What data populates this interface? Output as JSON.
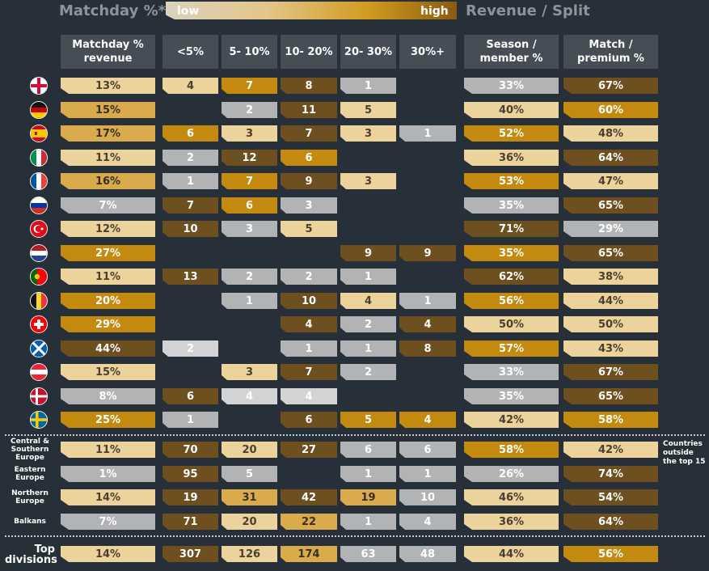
{
  "header": {
    "matchday_title": "Matchday %*",
    "low_label": "low",
    "high_label": "high",
    "revenue_title": "Revenue / Split"
  },
  "columns": {
    "matchday": "Matchday % revenue",
    "b1": "<5%",
    "b2": "5- 10%",
    "b3": "10- 20%",
    "b4": "20- 30%",
    "b5": "30%+",
    "season": "Season / member %",
    "match": "Match / premium %"
  },
  "palette": {
    "pale": "#ecd39c",
    "light": "#d9ab4c",
    "gold": "#c48a10",
    "brown": "#6e4f1f",
    "grey": "#b2b3b5",
    "lgrey": "#d2d3d4"
  },
  "chart_data": {
    "type": "table",
    "countries": [
      {
        "flag": "england-flag-icon",
        "matchday": "13%",
        "mc": "pale",
        "bins": [
          [
            "4",
            "pale"
          ],
          [
            "7",
            "gold"
          ],
          [
            "8",
            "brown"
          ],
          [
            "1",
            "grey"
          ],
          null
        ],
        "season": [
          "33%",
          "grey"
        ],
        "match": [
          "67%",
          "brown"
        ]
      },
      {
        "flag": "germany-flag-icon",
        "matchday": "15%",
        "mc": "light",
        "bins": [
          null,
          [
            "2",
            "grey"
          ],
          [
            "11",
            "brown"
          ],
          [
            "5",
            "pale"
          ],
          null
        ],
        "season": [
          "40%",
          "pale"
        ],
        "match": [
          "60%",
          "gold"
        ]
      },
      {
        "flag": "spain-flag-icon",
        "matchday": "17%",
        "mc": "light",
        "bins": [
          [
            "6",
            "gold"
          ],
          [
            "3",
            "pale"
          ],
          [
            "7",
            "brown"
          ],
          [
            "3",
            "pale"
          ],
          [
            "1",
            "grey"
          ]
        ],
        "season": [
          "52%",
          "gold"
        ],
        "match": [
          "48%",
          "pale"
        ]
      },
      {
        "flag": "italy-flag-icon",
        "matchday": "11%",
        "mc": "pale",
        "bins": [
          [
            "2",
            "grey"
          ],
          [
            "12",
            "brown"
          ],
          [
            "6",
            "gold"
          ],
          null,
          null
        ],
        "season": [
          "36%",
          "pale"
        ],
        "match": [
          "64%",
          "brown"
        ]
      },
      {
        "flag": "france-flag-icon",
        "matchday": "16%",
        "mc": "light",
        "bins": [
          [
            "1",
            "grey"
          ],
          [
            "7",
            "gold"
          ],
          [
            "9",
            "brown"
          ],
          [
            "3",
            "pale"
          ],
          null
        ],
        "season": [
          "53%",
          "gold"
        ],
        "match": [
          "47%",
          "pale"
        ]
      },
      {
        "flag": "russia-flag-icon",
        "matchday": "7%",
        "mc": "grey",
        "bins": [
          [
            "7",
            "brown"
          ],
          [
            "6",
            "gold"
          ],
          [
            "3",
            "grey"
          ],
          null,
          null
        ],
        "season": [
          "35%",
          "grey"
        ],
        "match": [
          "65%",
          "brown"
        ]
      },
      {
        "flag": "turkey-flag-icon",
        "matchday": "12%",
        "mc": "pale",
        "bins": [
          [
            "10",
            "brown"
          ],
          [
            "3",
            "grey"
          ],
          [
            "5",
            "pale"
          ],
          null,
          null
        ],
        "season": [
          "71%",
          "brown"
        ],
        "match": [
          "29%",
          "grey"
        ]
      },
      {
        "flag": "netherlands-flag-icon",
        "matchday": "27%",
        "mc": "gold",
        "bins": [
          null,
          null,
          null,
          [
            "9",
            "brown"
          ],
          [
            "9",
            "brown"
          ]
        ],
        "season": [
          "35%",
          "gold"
        ],
        "match": [
          "65%",
          "brown"
        ]
      },
      {
        "flag": "portugal-flag-icon",
        "matchday": "11%",
        "mc": "pale",
        "bins": [
          [
            "13",
            "brown"
          ],
          [
            "2",
            "grey"
          ],
          [
            "2",
            "grey"
          ],
          [
            "1",
            "grey"
          ],
          null
        ],
        "season": [
          "62%",
          "brown"
        ],
        "match": [
          "38%",
          "pale"
        ]
      },
      {
        "flag": "belgium-flag-icon",
        "matchday": "20%",
        "mc": "gold",
        "bins": [
          null,
          [
            "1",
            "grey"
          ],
          [
            "10",
            "brown"
          ],
          [
            "4",
            "pale"
          ],
          [
            "1",
            "grey"
          ]
        ],
        "season": [
          "56%",
          "gold"
        ],
        "match": [
          "44%",
          "pale"
        ]
      },
      {
        "flag": "switzerland-flag-icon",
        "matchday": "29%",
        "mc": "gold",
        "bins": [
          null,
          null,
          [
            "4",
            "brown"
          ],
          [
            "2",
            "grey"
          ],
          [
            "4",
            "brown"
          ]
        ],
        "season": [
          "50%",
          "pale"
        ],
        "match": [
          "50%",
          "pale"
        ]
      },
      {
        "flag": "scotland-flag-icon",
        "matchday": "44%",
        "mc": "brown",
        "bins": [
          [
            "2",
            "lgrey"
          ],
          null,
          [
            "1",
            "grey"
          ],
          [
            "1",
            "grey"
          ],
          [
            "8",
            "brown"
          ]
        ],
        "season": [
          "57%",
          "gold"
        ],
        "match": [
          "43%",
          "pale"
        ]
      },
      {
        "flag": "austria-flag-icon",
        "matchday": "15%",
        "mc": "pale",
        "bins": [
          null,
          [
            "3",
            "pale"
          ],
          [
            "7",
            "brown"
          ],
          [
            "2",
            "grey"
          ],
          null
        ],
        "season": [
          "33%",
          "grey"
        ],
        "match": [
          "67%",
          "brown"
        ]
      },
      {
        "flag": "denmark-flag-icon",
        "matchday": "8%",
        "mc": "grey",
        "bins": [
          [
            "6",
            "brown"
          ],
          [
            "4",
            "lgrey"
          ],
          [
            "4",
            "lgrey"
          ],
          null,
          null
        ],
        "season": [
          "35%",
          "grey"
        ],
        "match": [
          "65%",
          "brown"
        ]
      },
      {
        "flag": "sweden-flag-icon",
        "matchday": "25%",
        "mc": "gold",
        "bins": [
          [
            "1",
            "grey"
          ],
          null,
          [
            "6",
            "brown"
          ],
          [
            "5",
            "gold"
          ],
          [
            "4",
            "gold"
          ]
        ],
        "season": [
          "42%",
          "pale"
        ],
        "match": [
          "58%",
          "gold"
        ]
      }
    ],
    "regions": [
      {
        "label": "Central & Southern Europe",
        "matchday": "11%",
        "mc": "pale",
        "bins": [
          [
            "70",
            "brown"
          ],
          [
            "20",
            "pale"
          ],
          [
            "27",
            "brown"
          ],
          [
            "6",
            "grey"
          ],
          [
            "6",
            "grey"
          ]
        ],
        "season": [
          "58%",
          "gold"
        ],
        "match": [
          "42%",
          "pale"
        ]
      },
      {
        "label": "Eastern Europe",
        "matchday": "1%",
        "mc": "grey",
        "bins": [
          [
            "95",
            "brown"
          ],
          [
            "5",
            "grey"
          ],
          null,
          [
            "1",
            "grey"
          ],
          [
            "1",
            "grey"
          ]
        ],
        "season": [
          "26%",
          "grey"
        ],
        "match": [
          "74%",
          "brown"
        ]
      },
      {
        "label": "Northern Europe",
        "matchday": "14%",
        "mc": "pale",
        "bins": [
          [
            "19",
            "brown"
          ],
          [
            "31",
            "light"
          ],
          [
            "42",
            "brown"
          ],
          [
            "19",
            "light"
          ],
          [
            "10",
            "grey"
          ]
        ],
        "season": [
          "46%",
          "pale"
        ],
        "match": [
          "54%",
          "brown"
        ]
      },
      {
        "label": "Balkans",
        "matchday": "7%",
        "mc": "grey",
        "bins": [
          [
            "71",
            "brown"
          ],
          [
            "20",
            "pale"
          ],
          [
            "22",
            "light"
          ],
          [
            "1",
            "grey"
          ],
          [
            "4",
            "grey"
          ]
        ],
        "season": [
          "36%",
          "pale"
        ],
        "match": [
          "64%",
          "brown"
        ]
      }
    ],
    "regions_note": "Countries outside the top 15",
    "total": {
      "label": "Top divisions",
      "matchday": "14%",
      "mc": "pale",
      "bins": [
        [
          "307",
          "brown"
        ],
        [
          "126",
          "pale"
        ],
        [
          "174",
          "light"
        ],
        [
          "63",
          "grey"
        ],
        [
          "48",
          "grey"
        ]
      ],
      "season": [
        "44%",
        "pale"
      ],
      "match": [
        "56%",
        "gold"
      ]
    }
  }
}
